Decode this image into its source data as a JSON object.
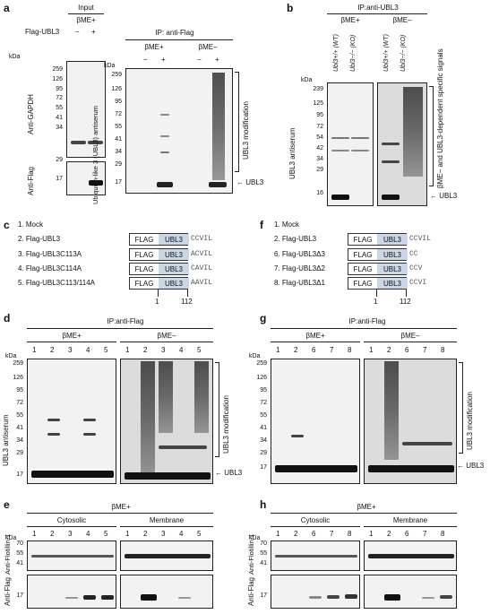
{
  "panel_a": {
    "label": "a",
    "input_title": "Input",
    "bme_plus": "βME+",
    "bme_minus": "βME–",
    "flag_ubl3": "Flag-UBL3",
    "minus": "−",
    "plus": "+",
    "kda": "kDa",
    "anti_gapdh": "Anti-GAPDH",
    "anti_flag": "Anti-Flag",
    "ip_title": "IP: anti-Flag",
    "antiserum": "Ubiquitin-like 3 (UBL3) antiserum",
    "modification": "UBL3 modification",
    "ubl3": "UBL3",
    "mw_left": [
      "259",
      "126",
      "95",
      "72",
      "55",
      "41",
      "34",
      "29",
      "17"
    ],
    "mw_right": [
      "259",
      "126",
      "95",
      "72",
      "55",
      "41",
      "34",
      "29",
      "17"
    ]
  },
  "panel_b": {
    "label": "b",
    "ip_title": "IP:anti-UBL3",
    "bme_plus": "βME+",
    "bme_minus": "βME–",
    "lanes": [
      "Ubl3+/+ (WT)",
      "Ubl3−/− (KO)",
      "Ubl3+/+ (WT)",
      "Ubl3−/− (KO)"
    ],
    "kda": "kDa",
    "mw": [
      "239",
      "125",
      "95",
      "72",
      "54",
      "42",
      "34",
      "29",
      "16"
    ],
    "antiserum": "UBL3 antiserum",
    "specific": "βME− and UBL3-dependent specific signals",
    "ubl3": "UBL3"
  },
  "panel_c": {
    "label": "c",
    "items": [
      "1. Mock",
      "2. Flag-UBL3",
      "3. Flag-UBL3C113A",
      "4. Flag-UBL3C114A",
      "5. Flag-UBL3C113/114A"
    ],
    "seqs": [
      "CCVIL",
      "ACVIL",
      "CAVIL",
      "AAVIL"
    ],
    "flag": "FLAG",
    "ubl3": "UBL3",
    "pos1": "1",
    "pos2": "112"
  },
  "panel_f": {
    "label": "f",
    "items": [
      "1. Mock",
      "2. Flag-UBL3",
      "6. Flag-UBL3Δ3",
      "7. Flag-UBL3Δ2",
      "8. Flag-UBL3Δ1"
    ],
    "seqs": [
      "CCVIL",
      "CC",
      "CCV",
      "CCVI"
    ],
    "flag": "FLAG",
    "ubl3": "UBL3",
    "pos1": "1",
    "pos2": "112"
  },
  "panel_d": {
    "label": "d",
    "ip_title": "IP:anti-Flag",
    "bme_plus": "βME+",
    "bme_minus": "βME–",
    "lanes_left": [
      "1",
      "2",
      "3",
      "4",
      "5"
    ],
    "lanes_right": [
      "1",
      "2",
      "3",
      "4",
      "5"
    ],
    "kda": "kDa",
    "mw": [
      "259",
      "126",
      "95",
      "72",
      "55",
      "41",
      "34",
      "29",
      "17"
    ],
    "antiserum": "UBL3 antiserum",
    "modification": "UBL3 modification",
    "ubl3": "UBL3"
  },
  "panel_g": {
    "label": "g",
    "ip_title": "IP:anti-Flag",
    "bme_plus": "βME+",
    "bme_minus": "βME–",
    "lanes_left": [
      "1",
      "2",
      "6",
      "7",
      "8"
    ],
    "lanes_right": [
      "1",
      "2",
      "6",
      "7",
      "8"
    ],
    "kda": "kDa",
    "mw": [
      "259",
      "126",
      "95",
      "72",
      "55",
      "41",
      "34",
      "29",
      "17"
    ],
    "modification": "UBL3 modification",
    "ubl3": "UBL3"
  },
  "panel_e": {
    "label": "e",
    "bme_plus": "βME+",
    "cytosolic": "Cytosolic",
    "membrane": "Membrane",
    "lanes_left": [
      "1",
      "2",
      "3",
      "4",
      "5"
    ],
    "lanes_right": [
      "1",
      "2",
      "3",
      "4",
      "5"
    ],
    "kda": "kDa",
    "mw_top": [
      "70",
      "55",
      "41"
    ],
    "mw_bottom": [
      "17"
    ],
    "anti_flotillin": "Anti-Flotillin-1",
    "anti_flag": "Anti-Flag"
  },
  "panel_h": {
    "label": "h",
    "bme_plus": "βME+",
    "cytosolic": "Cytosolic",
    "membrane": "Membrane",
    "lanes_left": [
      "1",
      "2",
      "6",
      "7",
      "8"
    ],
    "lanes_right": [
      "1",
      "2",
      "6",
      "7",
      "8"
    ],
    "kda": "kDa",
    "mw_top": [
      "70",
      "55",
      "41"
    ],
    "mw_bottom": [
      "17"
    ],
    "anti_flotillin": "Anti-Flotillin-1",
    "anti_flag": "Anti-Flag"
  }
}
